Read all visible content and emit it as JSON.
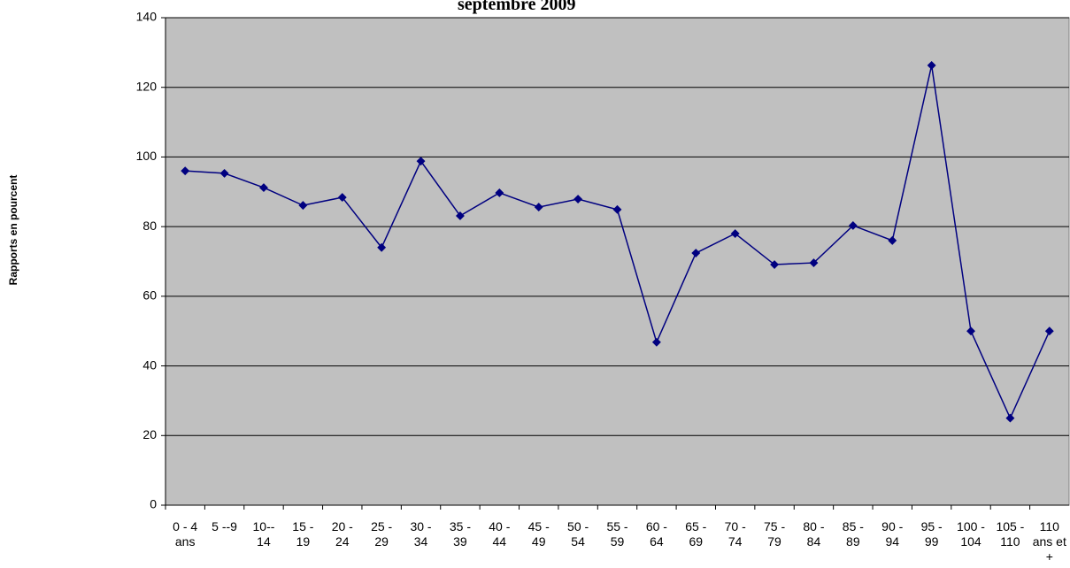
{
  "chart_data": {
    "type": "line",
    "title": "septembre 2009",
    "y_label": "Rapports en pourcent",
    "categories": [
      "0 - 4 ans",
      "5 --9",
      "10-- 14",
      "15 - 19",
      "20 - 24",
      "25 - 29",
      "30 - 34",
      "35 - 39",
      "40 - 44",
      "45 - 49",
      "50 - 54",
      "55 - 59",
      "60 - 64",
      "65 - 69",
      "70 - 74",
      "75 - 79",
      "80 - 84",
      "85 - 89",
      "90 - 94",
      "95 - 99",
      "100 - 104",
      "105 - 110",
      "110 ans et +"
    ],
    "series": [
      {
        "color": "#000080",
        "values": [
          96,
          95.3,
          91.2,
          86.1,
          88.4,
          74,
          98.8,
          83.1,
          89.7,
          85.6,
          87.9,
          84.9,
          46.8,
          72.4,
          78,
          69.1,
          69.6,
          80.3,
          76,
          126.3,
          50,
          25,
          50
        ]
      }
    ],
    "ylim": [
      0,
      140
    ],
    "yticks": [
      0,
      20,
      40,
      60,
      80,
      100,
      120,
      140
    ],
    "grid": true,
    "background": "#c0c0c0"
  }
}
